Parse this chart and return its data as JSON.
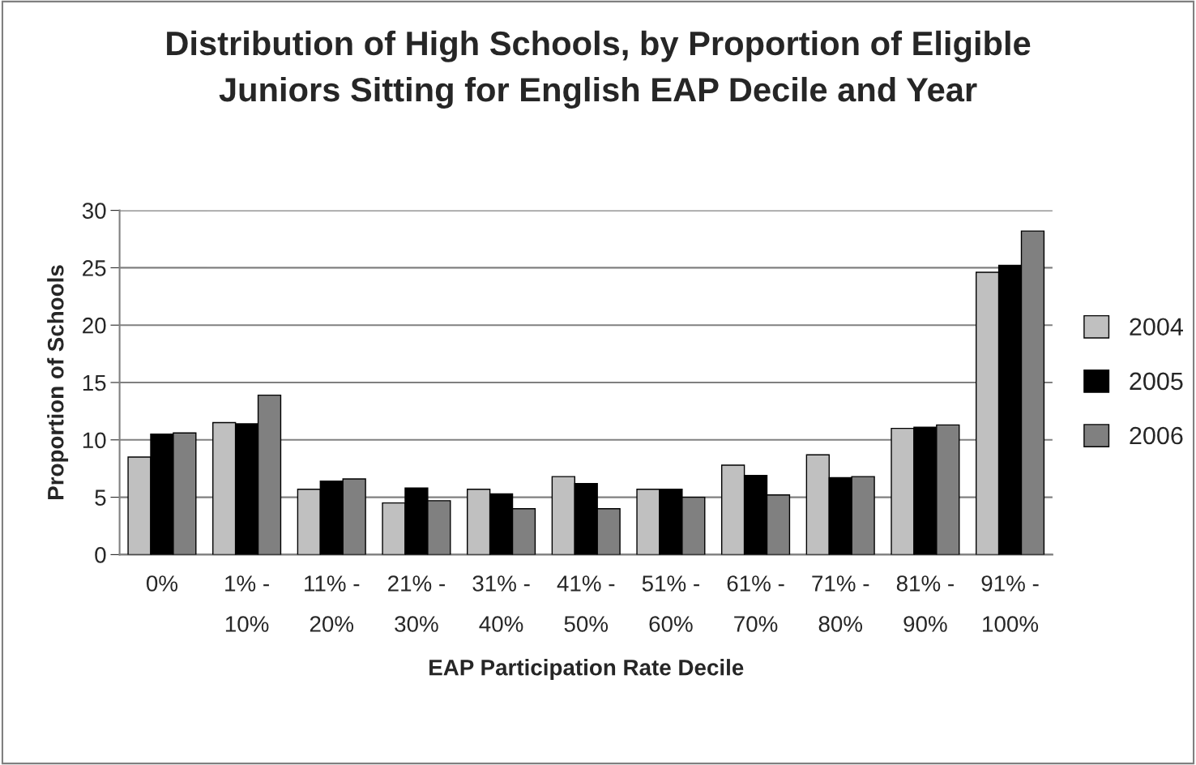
{
  "chart_data": {
    "type": "bar",
    "title": "Distribution of High Schools, by Proportion of Eligible\nJuniors Sitting for English EAP Decile and Year",
    "xlabel": "EAP Participation Rate Decile",
    "ylabel": "Proportion of Schools",
    "categories": [
      "0%",
      "1% -\n10%",
      "11% -\n20%",
      "21% -\n30%",
      "31% -\n40%",
      "41% -\n50%",
      "51% -\n60%",
      "61% -\n70%",
      "71% -\n80%",
      "81% -\n90%",
      "91% -\n100%"
    ],
    "series": [
      {
        "name": "2004",
        "color": "#c0c0c0",
        "values": [
          8.5,
          11.5,
          5.7,
          4.5,
          5.7,
          6.8,
          5.7,
          7.8,
          8.7,
          11.0,
          24.6
        ]
      },
      {
        "name": "2005",
        "color": "#000000",
        "values": [
          10.5,
          11.4,
          6.4,
          5.8,
          5.3,
          6.2,
          5.7,
          6.9,
          6.7,
          11.1,
          25.2
        ]
      },
      {
        "name": "2006",
        "color": "#808080",
        "values": [
          10.6,
          13.9,
          6.6,
          4.7,
          4.0,
          4.0,
          5.0,
          5.2,
          6.8,
          11.3,
          28.2
        ]
      }
    ],
    "ylim": [
      0,
      30
    ],
    "yticks": [
      0,
      5,
      10,
      15,
      20,
      25,
      30
    ],
    "grid": "y",
    "legend": "right"
  }
}
